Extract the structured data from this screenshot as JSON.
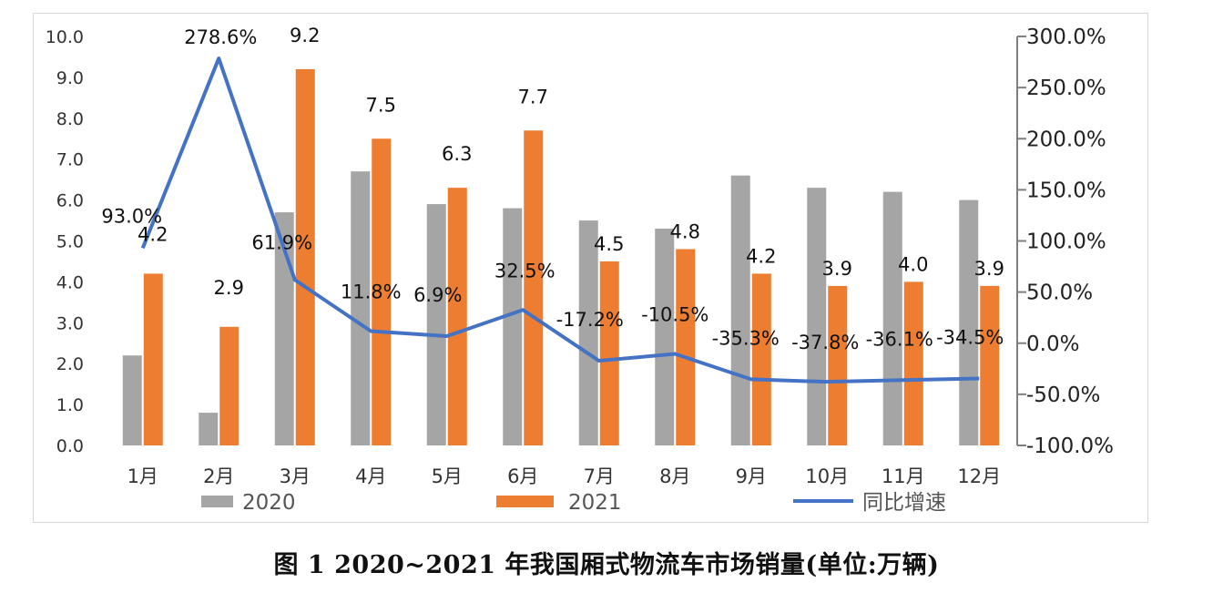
{
  "caption": "图 1 2020~2021 年我国厢式物流车市场销量(单位:万辆)",
  "chart_data": {
    "type": "bar",
    "categories": [
      "1月",
      "2月",
      "3月",
      "4月",
      "5月",
      "6月",
      "7月",
      "8月",
      "9月",
      "10月",
      "11月",
      "12月"
    ],
    "series": [
      {
        "name": "2020",
        "type": "bar",
        "axis": "left",
        "color": "#a5a5a5",
        "values": [
          2.2,
          0.8,
          5.7,
          6.7,
          5.9,
          5.8,
          5.5,
          5.3,
          6.6,
          6.3,
          6.2,
          6.0
        ]
      },
      {
        "name": "2021",
        "type": "bar",
        "axis": "left",
        "color": "#ed7d31",
        "values": [
          4.2,
          2.9,
          9.2,
          7.5,
          6.3,
          7.7,
          4.5,
          4.8,
          4.2,
          3.9,
          4.0,
          3.9
        ],
        "labels": [
          "4.2",
          "2.9",
          "9.2",
          "7.5",
          "6.3",
          "7.7",
          "4.5",
          "4.8",
          "4.2",
          "3.9",
          "4.0",
          "3.9"
        ]
      },
      {
        "name": "同比增速",
        "type": "line",
        "axis": "right",
        "color": "#4472c4",
        "values": [
          93.0,
          278.6,
          61.9,
          11.8,
          6.9,
          32.5,
          -17.2,
          -10.5,
          -35.3,
          -37.8,
          -36.1,
          -34.5
        ],
        "labels": [
          "93.0%",
          "278.6%",
          "61.9%",
          "11.8%",
          "6.9%",
          "32.5%",
          "-17.2%",
          "-10.5%",
          "-35.3%",
          "-37.8%",
          "-36.1%",
          "-34.5%"
        ]
      }
    ],
    "y_left": {
      "ylim": [
        0,
        10
      ],
      "ticks": [
        "0.0",
        "1.0",
        "2.0",
        "3.0",
        "4.0",
        "5.0",
        "6.0",
        "7.0",
        "8.0",
        "9.0",
        "10.0"
      ]
    },
    "y_right": {
      "ylim": [
        -100,
        300
      ],
      "ticks": [
        "-100.0%",
        "-50.0%",
        "0.0%",
        "50.0%",
        "100.0%",
        "150.0%",
        "200.0%",
        "250.0%",
        "300.0%"
      ]
    },
    "grid": false,
    "legend": "bottom"
  }
}
